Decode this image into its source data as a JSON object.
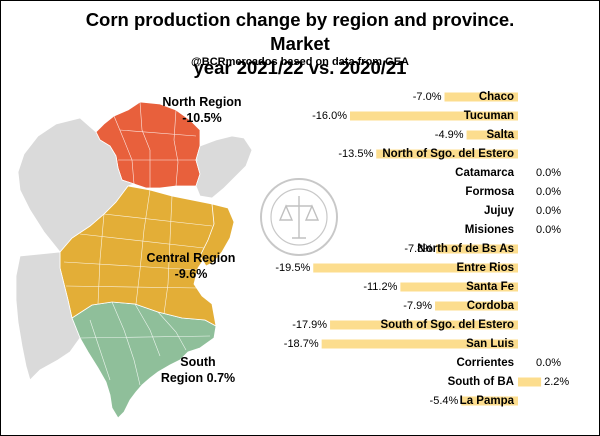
{
  "header": {
    "title_line1": "Corn production change by region and province. Market",
    "title_line2": "year 2021/22 vs. 2020/21",
    "subtitle": "@BCRmercados based on data from GEA"
  },
  "map": {
    "regions": [
      {
        "name": "North Region",
        "value": "-10.5%",
        "color": "#E8603C"
      },
      {
        "name": "Central Region",
        "value": "-9.6%",
        "color": "#E3AE37"
      },
      {
        "name": "South Region 0.7%",
        "value": "",
        "color": "#8FBF9A"
      }
    ],
    "labels": {
      "north_line1": "North Region",
      "north_line2": "-10.5%",
      "central_line1": "Central Region",
      "central_line2": "-9.6%",
      "south_line1": "South",
      "south_line2": "Region 0.7%"
    },
    "watermark": "BOLSA DE COMERCIO DE ROSARIO"
  },
  "chart_data": {
    "type": "bar",
    "orientation": "horizontal",
    "bar_color": "#FCDD8E",
    "categories": [
      "Chaco",
      "Tucuman",
      "Salta",
      "North of Sgo. del Estero",
      "Catamarca",
      "Formosa",
      "Jujuy",
      "Misiones",
      "North of de Bs As",
      "Entre Rios",
      "Santa Fe",
      "Cordoba",
      "South of Sgo. del Estero",
      "San Luis",
      "Corrientes",
      "South of BA",
      "La Pampa"
    ],
    "values": [
      -7.0,
      -16.0,
      -4.9,
      -13.5,
      0.0,
      0.0,
      0.0,
      0.0,
      -7.8,
      -19.5,
      -11.2,
      -7.9,
      -17.9,
      -18.7,
      0.0,
      2.2,
      -5.4
    ],
    "value_labels": [
      "-7.0%",
      "-16.0%",
      "-4.9%",
      "-13.5%",
      "0.0%",
      "0.0%",
      "0.0%",
      "0.0%",
      "-7.8%",
      "-19.5%",
      "-11.2%",
      "-7.9%",
      "-17.9%",
      "-18.7%",
      "0.0%",
      "2.2%",
      "-5.4%"
    ],
    "unit": "%",
    "title": "",
    "xlabel": "",
    "ylabel": "",
    "grid": false
  }
}
